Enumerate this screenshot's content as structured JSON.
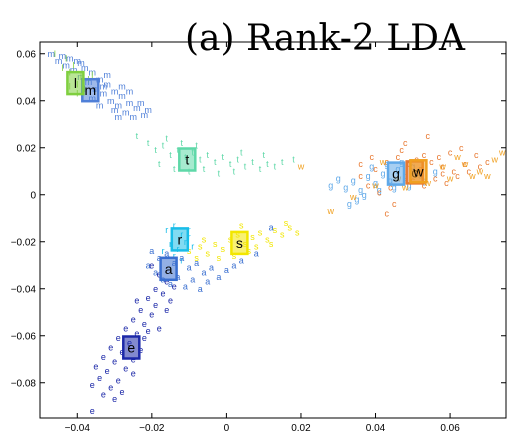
{
  "chart_data": {
    "type": "scatter",
    "title": "(a) Rank-2 LDA",
    "xlabel": "",
    "ylabel": "",
    "xlim": [
      -0.05,
      0.075
    ],
    "ylim": [
      -0.095,
      0.065
    ],
    "xticks": [
      -0.04,
      -0.02,
      0,
      0.02,
      0.04,
      0.06
    ],
    "yticks": [
      -0.08,
      -0.06,
      -0.04,
      -0.02,
      0,
      0.02,
      0.04,
      0.06
    ],
    "xtick_labels": [
      "−0.04",
      "−0.02",
      "0",
      "0.02",
      "0.04",
      "0.06"
    ],
    "ytick_labels": [
      "−0.08",
      "−0.06",
      "−0.04",
      "−0.02",
      "0",
      "0.02",
      "0.04",
      "0.06"
    ],
    "grid": false,
    "series": [
      {
        "name": "m",
        "color": "#4f7fd8",
        "centroid": [
          -0.0365,
          0.0445
        ],
        "centroid_label": "m",
        "points": [
          [
            -0.047,
            0.06
          ],
          [
            -0.044,
            0.059
          ],
          [
            -0.042,
            0.058
          ],
          [
            -0.04,
            0.057
          ],
          [
            -0.043,
            0.055
          ],
          [
            -0.041,
            0.053
          ],
          [
            -0.038,
            0.054
          ],
          [
            -0.036,
            0.052
          ],
          [
            -0.039,
            0.05
          ],
          [
            -0.037,
            0.048
          ],
          [
            -0.034,
            0.049
          ],
          [
            -0.032,
            0.047
          ],
          [
            -0.035,
            0.045
          ],
          [
            -0.033,
            0.043
          ],
          [
            -0.03,
            0.044
          ],
          [
            -0.028,
            0.042
          ],
          [
            -0.031,
            0.04
          ],
          [
            -0.029,
            0.038
          ],
          [
            -0.026,
            0.039
          ],
          [
            -0.024,
            0.037
          ],
          [
            -0.027,
            0.035
          ],
          [
            -0.025,
            0.033
          ],
          [
            -0.022,
            0.034
          ],
          [
            -0.03,
            0.036
          ],
          [
            -0.034,
            0.038
          ],
          [
            -0.036,
            0.041
          ],
          [
            -0.028,
            0.046
          ],
          [
            -0.026,
            0.044
          ],
          [
            -0.032,
            0.051
          ],
          [
            -0.045,
            0.057
          ],
          [
            -0.039,
            0.056
          ],
          [
            -0.023,
            0.039
          ],
          [
            -0.021,
            0.036
          ],
          [
            -0.029,
            0.033
          ],
          [
            -0.033,
            0.046
          ]
        ]
      },
      {
        "name": "l",
        "color": "#7fcf3f",
        "centroid": [
          -0.0405,
          0.0475
        ],
        "centroid_label": "l",
        "points": [
          [
            -0.046,
            0.06
          ],
          [
            -0.043,
            0.058
          ],
          [
            -0.041,
            0.055
          ],
          [
            -0.042,
            0.052
          ],
          [
            -0.039,
            0.05
          ],
          [
            -0.04,
            0.047
          ],
          [
            -0.038,
            0.045
          ],
          [
            -0.044,
            0.054
          ],
          [
            -0.037,
            0.049
          ],
          [
            -0.042,
            0.046
          ],
          [
            -0.04,
            0.043
          ],
          [
            -0.036,
            0.051
          ]
        ]
      },
      {
        "name": "t",
        "color": "#5fd8a8",
        "centroid": [
          -0.0105,
          0.015
        ],
        "centroid_label": "t",
        "points": [
          [
            -0.024,
            0.025
          ],
          [
            -0.021,
            0.022
          ],
          [
            -0.019,
            0.019
          ],
          [
            -0.017,
            0.021
          ],
          [
            -0.015,
            0.017
          ],
          [
            -0.013,
            0.019
          ],
          [
            -0.011,
            0.016
          ],
          [
            -0.009,
            0.018
          ],
          [
            -0.007,
            0.015
          ],
          [
            -0.005,
            0.017
          ],
          [
            -0.003,
            0.014
          ],
          [
            -0.001,
            0.016
          ],
          [
            0.001,
            0.013
          ],
          [
            0.003,
            0.015
          ],
          [
            0.005,
            0.012
          ],
          [
            0.007,
            0.014
          ],
          [
            0.009,
            0.011
          ],
          [
            0.011,
            0.013
          ],
          [
            0.013,
            0.012
          ],
          [
            0.015,
            0.014
          ],
          [
            0.018,
            0.015
          ],
          [
            -0.018,
            0.013
          ],
          [
            -0.014,
            0.011
          ],
          [
            -0.01,
            0.01
          ],
          [
            -0.006,
            0.011
          ],
          [
            -0.002,
            0.009
          ],
          [
            0.002,
            0.01
          ],
          [
            -0.016,
            0.024
          ],
          [
            -0.012,
            0.022
          ],
          [
            -0.008,
            0.021
          ],
          [
            0.004,
            0.018
          ],
          [
            0.01,
            0.017
          ]
        ]
      },
      {
        "name": "r",
        "color": "#19bde8",
        "centroid": [
          -0.0125,
          -0.019
        ],
        "centroid_label": "r",
        "points": [
          [
            -0.016,
            -0.015
          ],
          [
            -0.014,
            -0.013
          ],
          [
            -0.012,
            -0.017
          ],
          [
            -0.01,
            -0.015
          ],
          [
            -0.015,
            -0.021
          ],
          [
            -0.013,
            -0.023
          ],
          [
            -0.011,
            -0.02
          ],
          [
            -0.009,
            -0.022
          ],
          [
            -0.014,
            -0.026
          ],
          [
            -0.012,
            -0.028
          ],
          [
            -0.017,
            -0.024
          ],
          [
            -0.01,
            -0.018
          ]
        ]
      },
      {
        "name": "s",
        "color": "#f2e600",
        "centroid": [
          0.0035,
          -0.0205
        ],
        "centroid_label": "s",
        "points": [
          [
            -0.01,
            -0.024
          ],
          [
            -0.007,
            -0.022
          ],
          [
            -0.005,
            -0.025
          ],
          [
            -0.003,
            -0.021
          ],
          [
            -0.001,
            -0.023
          ],
          [
            0.001,
            -0.019
          ],
          [
            0.003,
            -0.017
          ],
          [
            0.005,
            -0.021
          ],
          [
            0.007,
            -0.018
          ],
          [
            0.009,
            -0.016
          ],
          [
            0.011,
            -0.019
          ],
          [
            0.013,
            -0.015
          ],
          [
            0.015,
            -0.017
          ],
          [
            0.017,
            -0.014
          ],
          [
            0.019,
            -0.016
          ],
          [
            -0.002,
            -0.027
          ],
          [
            0.002,
            -0.026
          ],
          [
            0.006,
            -0.024
          ],
          [
            -0.006,
            -0.019
          ],
          [
            0.004,
            -0.013
          ],
          [
            0.008,
            -0.022
          ],
          [
            0.012,
            -0.021
          ],
          [
            0.016,
            -0.012
          ],
          [
            -0.008,
            -0.027
          ]
        ]
      },
      {
        "name": "a",
        "color": "#3a6fd0",
        "centroid": [
          -0.0155,
          -0.0315
        ],
        "centroid_label": "a",
        "points": [
          [
            -0.02,
            -0.024
          ],
          [
            -0.018,
            -0.027
          ],
          [
            -0.016,
            -0.025
          ],
          [
            -0.014,
            -0.029
          ],
          [
            -0.012,
            -0.027
          ],
          [
            -0.01,
            -0.031
          ],
          [
            -0.008,
            -0.029
          ],
          [
            -0.006,
            -0.033
          ],
          [
            -0.004,
            -0.031
          ],
          [
            -0.002,
            -0.035
          ],
          [
            0.0,
            -0.032
          ],
          [
            0.002,
            -0.03
          ],
          [
            0.004,
            -0.028
          ],
          [
            0.008,
            -0.025
          ],
          [
            0.012,
            -0.014
          ],
          [
            -0.019,
            -0.033
          ],
          [
            -0.017,
            -0.036
          ],
          [
            -0.015,
            -0.038
          ],
          [
            -0.013,
            -0.035
          ],
          [
            -0.011,
            -0.039
          ],
          [
            -0.009,
            -0.036
          ],
          [
            -0.007,
            -0.04
          ],
          [
            -0.005,
            -0.037
          ],
          [
            -0.021,
            -0.03
          ]
        ]
      },
      {
        "name": "e",
        "color": "#1c28a8",
        "centroid": [
          -0.0255,
          -0.065
        ],
        "centroid_label": "e",
        "points": [
          [
            -0.02,
            -0.03
          ],
          [
            -0.018,
            -0.034
          ],
          [
            -0.016,
            -0.037
          ],
          [
            -0.019,
            -0.04
          ],
          [
            -0.017,
            -0.042
          ],
          [
            -0.014,
            -0.039
          ],
          [
            -0.021,
            -0.044
          ],
          [
            -0.019,
            -0.047
          ],
          [
            -0.023,
            -0.049
          ],
          [
            -0.02,
            -0.051
          ],
          [
            -0.025,
            -0.053
          ],
          [
            -0.022,
            -0.055
          ],
          [
            -0.027,
            -0.057
          ],
          [
            -0.024,
            -0.059
          ],
          [
            -0.029,
            -0.061
          ],
          [
            -0.026,
            -0.063
          ],
          [
            -0.031,
            -0.065
          ],
          [
            -0.028,
            -0.067
          ],
          [
            -0.023,
            -0.066
          ],
          [
            -0.033,
            -0.069
          ],
          [
            -0.03,
            -0.071
          ],
          [
            -0.025,
            -0.07
          ],
          [
            -0.035,
            -0.073
          ],
          [
            -0.032,
            -0.075
          ],
          [
            -0.027,
            -0.074
          ],
          [
            -0.034,
            -0.078
          ],
          [
            -0.029,
            -0.079
          ],
          [
            -0.031,
            -0.082
          ],
          [
            -0.036,
            -0.081
          ],
          [
            -0.033,
            -0.085
          ],
          [
            -0.03,
            -0.087
          ],
          [
            -0.036,
            -0.092
          ],
          [
            -0.022,
            -0.061
          ],
          [
            -0.018,
            -0.057
          ],
          [
            -0.016,
            -0.049
          ],
          [
            -0.015,
            -0.045
          ],
          [
            -0.024,
            -0.045
          ],
          [
            -0.021,
            -0.058
          ],
          [
            -0.025,
            -0.076
          ],
          [
            -0.028,
            -0.084
          ]
        ]
      },
      {
        "name": "g",
        "color": "#5fa8e8",
        "centroid": [
          0.0455,
          0.009
        ],
        "centroid_label": "g",
        "points": [
          [
            0.028,
            0.004
          ],
          [
            0.03,
            0.007
          ],
          [
            0.032,
            0.003
          ],
          [
            0.034,
            0.006
          ],
          [
            0.036,
            0.002
          ],
          [
            0.038,
            0.008
          ],
          [
            0.04,
            0.005
          ],
          [
            0.042,
            0.009
          ],
          [
            0.044,
            0.006
          ],
          [
            0.046,
            0.011
          ],
          [
            0.048,
            0.008
          ],
          [
            0.05,
            0.012
          ],
          [
            0.052,
            0.009
          ],
          [
            0.035,
            -0.002
          ],
          [
            0.037,
            0.0
          ],
          [
            0.033,
            -0.004
          ],
          [
            0.041,
            0.002
          ],
          [
            0.045,
            0.003
          ],
          [
            0.049,
            0.004
          ],
          [
            0.053,
            0.006
          ],
          [
            0.056,
            0.01
          ],
          [
            0.039,
            0.012
          ],
          [
            0.043,
            0.013
          ],
          [
            0.047,
            0.014
          ]
        ]
      },
      {
        "name": "c",
        "color": "#e87830",
        "centroid": [
          0.0505,
          0.0095
        ],
        "centroid_label": "c",
        "points": [
          [
            0.036,
            0.008
          ],
          [
            0.04,
            0.011
          ],
          [
            0.043,
            0.014
          ],
          [
            0.046,
            0.016
          ],
          [
            0.049,
            0.013
          ],
          [
            0.052,
            0.011
          ],
          [
            0.055,
            0.014
          ],
          [
            0.058,
            0.012
          ],
          [
            0.061,
            0.01
          ],
          [
            0.064,
            0.013
          ],
          [
            0.067,
            0.017
          ],
          [
            0.06,
            0.018
          ],
          [
            0.047,
            0.019
          ],
          [
            0.05,
            0.006
          ],
          [
            0.053,
            0.004
          ],
          [
            0.056,
            0.007
          ],
          [
            0.059,
            0.005
          ],
          [
            0.062,
            0.008
          ],
          [
            0.044,
            0.003
          ],
          [
            0.041,
            0.001
          ],
          [
            0.038,
            0.004
          ],
          [
            0.065,
            0.01
          ],
          [
            0.057,
            0.016
          ],
          [
            0.053,
            0.017
          ],
          [
            0.068,
            0.012
          ],
          [
            0.045,
            -0.004
          ],
          [
            0.043,
            -0.008
          ],
          [
            0.048,
            0.022
          ],
          [
            0.054,
            0.025
          ],
          [
            0.063,
            0.02
          ],
          [
            0.039,
            0.016
          ],
          [
            0.036,
            0.013
          ],
          [
            0.07,
            0.014
          ],
          [
            0.058,
            0.009
          ],
          [
            0.051,
            0.015
          ]
        ]
      },
      {
        "name": "w",
        "color": "#f0a020",
        "centroid": [
          0.0515,
          0.01
        ],
        "centroid_label": "w",
        "points": [
          [
            0.02,
            0.012
          ],
          [
            0.028,
            -0.007
          ],
          [
            0.034,
            -0.001
          ],
          [
            0.04,
            0.004
          ],
          [
            0.046,
            0.007
          ],
          [
            0.052,
            0.01
          ],
          [
            0.058,
            0.012
          ],
          [
            0.064,
            0.013
          ],
          [
            0.068,
            0.01
          ],
          [
            0.072,
            0.015
          ],
          [
            0.074,
            0.018
          ],
          [
            0.066,
            0.008
          ],
          [
            0.06,
            0.007
          ],
          [
            0.054,
            0.005
          ],
          [
            0.048,
            0.003
          ],
          [
            0.042,
            0.014
          ],
          [
            0.07,
            0.008
          ],
          [
            0.062,
            0.016
          ]
        ]
      }
    ]
  }
}
